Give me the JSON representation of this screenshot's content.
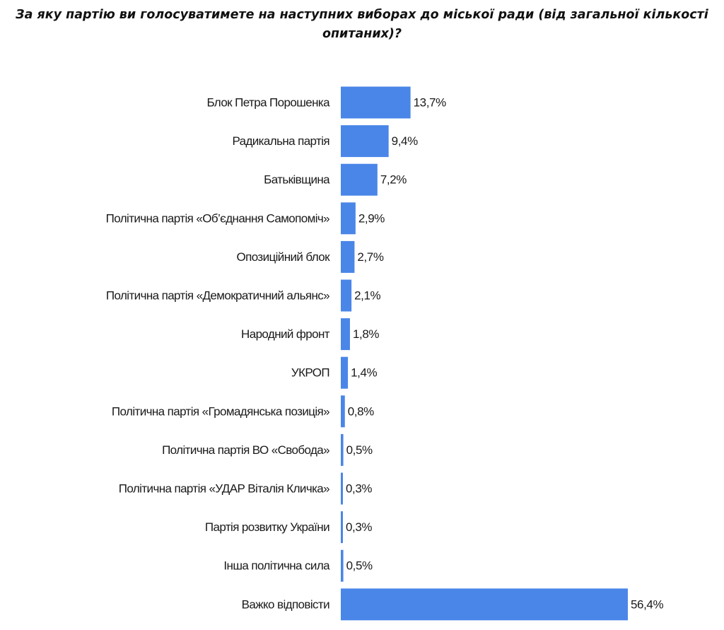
{
  "chart_data": {
    "type": "bar",
    "orientation": "horizontal",
    "title": "За яку партію ви голосуватимете  на наступних виборах до міської ради (від загальної кількості опитаних)?",
    "categories": [
      "Блок Петра Порошенка",
      "Радикальна партія",
      "Батьківщина",
      "Політична партія «Об’єднання Самопоміч»",
      "Опозиційний блок",
      "Політична партія «Демократичний альянс»",
      "Народний фронт",
      "УКРОП",
      "Політична партія «Громадянська позиція»",
      "Політична партія ВО «Свобода»",
      "Політична партія «УДАР Віталія Кличка»",
      "Партія розвитку України",
      "Інша політична сила",
      "Важко відповісти"
    ],
    "values": [
      13.7,
      9.4,
      7.2,
      2.9,
      2.7,
      2.1,
      1.8,
      1.4,
      0.8,
      0.5,
      0.3,
      0.3,
      0.5,
      56.4
    ],
    "value_labels": [
      "13,7%",
      "9,4%",
      "7,2%",
      "2,9%",
      "2,7%",
      "2,1%",
      "1,8%",
      "1,4%",
      "0,8%",
      "0,5%",
      "0,3%",
      "0,3%",
      "0,5%",
      "56,4%"
    ],
    "unit": "%",
    "bar_color": "#4a86e8",
    "xlim": [
      0,
      56.4
    ],
    "grid": false,
    "legend": "none"
  }
}
